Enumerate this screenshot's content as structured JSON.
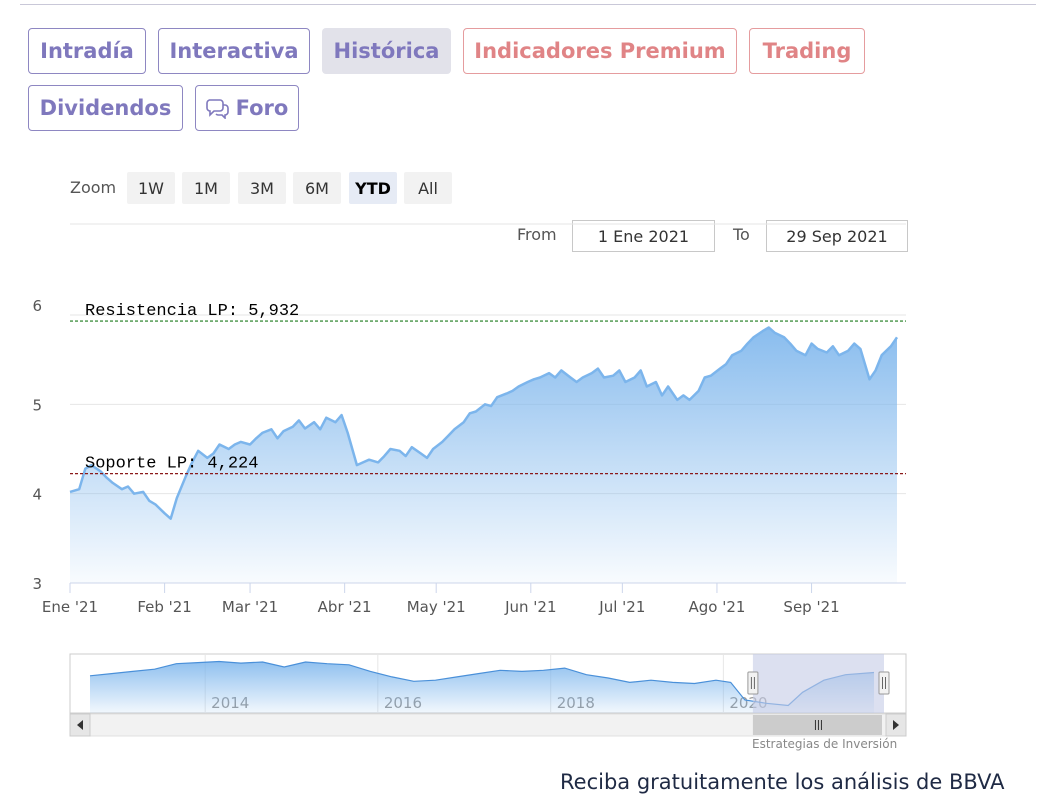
{
  "tabs": [
    {
      "label": "Intradía",
      "style": "purple"
    },
    {
      "label": "Interactiva",
      "style": "purple"
    },
    {
      "label": "Histórica",
      "style": "active"
    },
    {
      "label": "Indicadores Premium",
      "style": "pink"
    },
    {
      "label": "Trading",
      "style": "pink"
    },
    {
      "label": "Dividendos",
      "style": "purple"
    },
    {
      "label": "Foro",
      "style": "purple",
      "icon": "chat-bubbles-icon"
    }
  ],
  "zoom": {
    "label": "Zoom",
    "buttons": [
      "1W",
      "1M",
      "3M",
      "6M",
      "YTD",
      "All"
    ],
    "selected": "YTD"
  },
  "range": {
    "from_label": "From",
    "from_value": "1 Ene 2021",
    "to_label": "To",
    "to_value": "29 Sep 2021"
  },
  "chart_data": {
    "type": "area",
    "title": "",
    "xlabel": "",
    "ylabel": "",
    "ylim": [
      3,
      6
    ],
    "y_ticks": [
      "3",
      "4",
      "5",
      "6"
    ],
    "x_ticks": [
      "Ene '21",
      "Feb '21",
      "Mar '21",
      "Abr '21",
      "May '21",
      "Jun '21",
      "Jul '21",
      "Ago '21",
      "Sep '21"
    ],
    "x_tick_dates": [
      "2021-01-01",
      "2021-02-01",
      "2021-03-01",
      "2021-04-01",
      "2021-05-01",
      "2021-06-01",
      "2021-07-01",
      "2021-08-01",
      "2021-09-01"
    ],
    "xlim": [
      "2021-01-01",
      "2021-09-29"
    ],
    "series": [
      {
        "color": "#7cb5ec",
        "points": [
          [
            "2021-01-01",
            4.02
          ],
          [
            "2021-01-04",
            4.05
          ],
          [
            "2021-01-06",
            4.28
          ],
          [
            "2021-01-08",
            4.32
          ],
          [
            "2021-01-11",
            4.25
          ],
          [
            "2021-01-13",
            4.18
          ],
          [
            "2021-01-15",
            4.12
          ],
          [
            "2021-01-18",
            4.05
          ],
          [
            "2021-01-20",
            4.08
          ],
          [
            "2021-01-22",
            4.0
          ],
          [
            "2021-01-25",
            4.02
          ],
          [
            "2021-01-27",
            3.92
          ],
          [
            "2021-01-29",
            3.88
          ],
          [
            "2021-02-01",
            3.78
          ],
          [
            "2021-02-03",
            3.72
          ],
          [
            "2021-02-05",
            3.95
          ],
          [
            "2021-02-08",
            4.2
          ],
          [
            "2021-02-10",
            4.35
          ],
          [
            "2021-02-12",
            4.48
          ],
          [
            "2021-02-15",
            4.4
          ],
          [
            "2021-02-17",
            4.45
          ],
          [
            "2021-02-19",
            4.55
          ],
          [
            "2021-02-22",
            4.5
          ],
          [
            "2021-02-24",
            4.55
          ],
          [
            "2021-02-26",
            4.58
          ],
          [
            "2021-03-01",
            4.55
          ],
          [
            "2021-03-03",
            4.62
          ],
          [
            "2021-03-05",
            4.68
          ],
          [
            "2021-03-08",
            4.72
          ],
          [
            "2021-03-10",
            4.62
          ],
          [
            "2021-03-12",
            4.7
          ],
          [
            "2021-03-15",
            4.75
          ],
          [
            "2021-03-17",
            4.82
          ],
          [
            "2021-03-19",
            4.73
          ],
          [
            "2021-03-22",
            4.8
          ],
          [
            "2021-03-24",
            4.72
          ],
          [
            "2021-03-26",
            4.85
          ],
          [
            "2021-03-29",
            4.8
          ],
          [
            "2021-03-31",
            4.88
          ],
          [
            "2021-04-02",
            4.68
          ],
          [
            "2021-04-05",
            4.32
          ],
          [
            "2021-04-07",
            4.35
          ],
          [
            "2021-04-09",
            4.38
          ],
          [
            "2021-04-12",
            4.35
          ],
          [
            "2021-04-14",
            4.42
          ],
          [
            "2021-04-16",
            4.5
          ],
          [
            "2021-04-19",
            4.48
          ],
          [
            "2021-04-21",
            4.42
          ],
          [
            "2021-04-23",
            4.52
          ],
          [
            "2021-04-26",
            4.45
          ],
          [
            "2021-04-28",
            4.4
          ],
          [
            "2021-04-30",
            4.5
          ],
          [
            "2021-05-03",
            4.58
          ],
          [
            "2021-05-05",
            4.65
          ],
          [
            "2021-05-07",
            4.72
          ],
          [
            "2021-05-10",
            4.8
          ],
          [
            "2021-05-12",
            4.9
          ],
          [
            "2021-05-14",
            4.92
          ],
          [
            "2021-05-17",
            5.0
          ],
          [
            "2021-05-19",
            4.98
          ],
          [
            "2021-05-21",
            5.08
          ],
          [
            "2021-05-24",
            5.12
          ],
          [
            "2021-05-26",
            5.15
          ],
          [
            "2021-05-28",
            5.2
          ],
          [
            "2021-05-31",
            5.25
          ],
          [
            "2021-06-02",
            5.28
          ],
          [
            "2021-06-04",
            5.3
          ],
          [
            "2021-06-07",
            5.35
          ],
          [
            "2021-06-09",
            5.3
          ],
          [
            "2021-06-11",
            5.38
          ],
          [
            "2021-06-14",
            5.3
          ],
          [
            "2021-06-16",
            5.25
          ],
          [
            "2021-06-18",
            5.3
          ],
          [
            "2021-06-21",
            5.35
          ],
          [
            "2021-06-23",
            5.4
          ],
          [
            "2021-06-25",
            5.3
          ],
          [
            "2021-06-28",
            5.32
          ],
          [
            "2021-06-30",
            5.38
          ],
          [
            "2021-07-02",
            5.25
          ],
          [
            "2021-07-05",
            5.3
          ],
          [
            "2021-07-07",
            5.38
          ],
          [
            "2021-07-09",
            5.2
          ],
          [
            "2021-07-12",
            5.25
          ],
          [
            "2021-07-14",
            5.1
          ],
          [
            "2021-07-16",
            5.2
          ],
          [
            "2021-07-19",
            5.05
          ],
          [
            "2021-07-21",
            5.1
          ],
          [
            "2021-07-23",
            5.05
          ],
          [
            "2021-07-26",
            5.15
          ],
          [
            "2021-07-28",
            5.3
          ],
          [
            "2021-07-30",
            5.32
          ],
          [
            "2021-08-02",
            5.4
          ],
          [
            "2021-08-04",
            5.45
          ],
          [
            "2021-08-06",
            5.55
          ],
          [
            "2021-08-09",
            5.6
          ],
          [
            "2021-08-11",
            5.68
          ],
          [
            "2021-08-13",
            5.75
          ],
          [
            "2021-08-16",
            5.82
          ],
          [
            "2021-08-18",
            5.86
          ],
          [
            "2021-08-20",
            5.8
          ],
          [
            "2021-08-23",
            5.75
          ],
          [
            "2021-08-25",
            5.68
          ],
          [
            "2021-08-27",
            5.6
          ],
          [
            "2021-08-30",
            5.55
          ],
          [
            "2021-09-01",
            5.68
          ],
          [
            "2021-09-03",
            5.62
          ],
          [
            "2021-09-06",
            5.58
          ],
          [
            "2021-09-08",
            5.65
          ],
          [
            "2021-09-10",
            5.55
          ],
          [
            "2021-09-13",
            5.6
          ],
          [
            "2021-09-15",
            5.68
          ],
          [
            "2021-09-17",
            5.62
          ],
          [
            "2021-09-20",
            5.28
          ],
          [
            "2021-09-22",
            5.38
          ],
          [
            "2021-09-24",
            5.55
          ],
          [
            "2021-09-27",
            5.65
          ],
          [
            "2021-09-29",
            5.75
          ]
        ]
      }
    ],
    "plot_lines": [
      {
        "label": "Resistencia LP: 5,932",
        "value": 5.932,
        "color": "#1a7a1a",
        "dash": "dashed"
      },
      {
        "label": "Soporte LP: 4,224",
        "value": 4.224,
        "color": "#8b1a1a",
        "dash": "dashed"
      }
    ],
    "grid": true,
    "legend": "none"
  },
  "navigator": {
    "year_labels": [
      "2014",
      "2016",
      "2018",
      "2020"
    ],
    "year_dates": [
      "2014-01-01",
      "2016-01-01",
      "2018-01-01",
      "2020-01-01"
    ],
    "range": [
      "2012-09-01",
      "2021-09-29"
    ],
    "selected_range": [
      "2021-01-01",
      "2021-09-29"
    ],
    "series": [
      [
        "2012-09-01",
        4.7
      ],
      [
        "2012-12-01",
        4.9
      ],
      [
        "2013-03-01",
        5.1
      ],
      [
        "2013-06-01",
        5.3
      ],
      [
        "2013-09-01",
        5.8
      ],
      [
        "2013-12-01",
        5.9
      ],
      [
        "2014-03-01",
        6.0
      ],
      [
        "2014-06-01",
        5.85
      ],
      [
        "2014-09-01",
        5.95
      ],
      [
        "2014-12-01",
        5.5
      ],
      [
        "2015-03-01",
        5.95
      ],
      [
        "2015-06-01",
        5.8
      ],
      [
        "2015-09-01",
        5.7
      ],
      [
        "2015-12-01",
        5.1
      ],
      [
        "2016-03-01",
        4.6
      ],
      [
        "2016-06-01",
        4.2
      ],
      [
        "2016-09-01",
        4.3
      ],
      [
        "2016-12-01",
        4.6
      ],
      [
        "2017-03-01",
        4.9
      ],
      [
        "2017-06-01",
        5.2
      ],
      [
        "2017-09-01",
        5.1
      ],
      [
        "2017-12-01",
        5.2
      ],
      [
        "2018-03-01",
        5.4
      ],
      [
        "2018-06-01",
        4.8
      ],
      [
        "2018-09-01",
        4.5
      ],
      [
        "2018-12-01",
        4.1
      ],
      [
        "2019-03-01",
        4.3
      ],
      [
        "2019-06-01",
        4.1
      ],
      [
        "2019-09-01",
        4.0
      ],
      [
        "2019-12-01",
        4.3
      ],
      [
        "2020-02-01",
        4.1
      ],
      [
        "2020-04-01",
        2.5
      ],
      [
        "2020-07-01",
        2.2
      ],
      [
        "2020-10-01",
        2.0
      ],
      [
        "2020-12-01",
        3.2
      ],
      [
        "2021-03-01",
        4.3
      ],
      [
        "2021-06-01",
        4.8
      ],
      [
        "2021-09-29",
        5.0
      ]
    ]
  },
  "credit": "Estrategias de Inversión",
  "promo": "Reciba gratuitamente los análisis de BBVA",
  "colors": {
    "series": "#7cb5ec",
    "tab_purple": "#7f78bd",
    "tab_pink": "#e08486",
    "nav_mask": "#c5cbe6"
  }
}
